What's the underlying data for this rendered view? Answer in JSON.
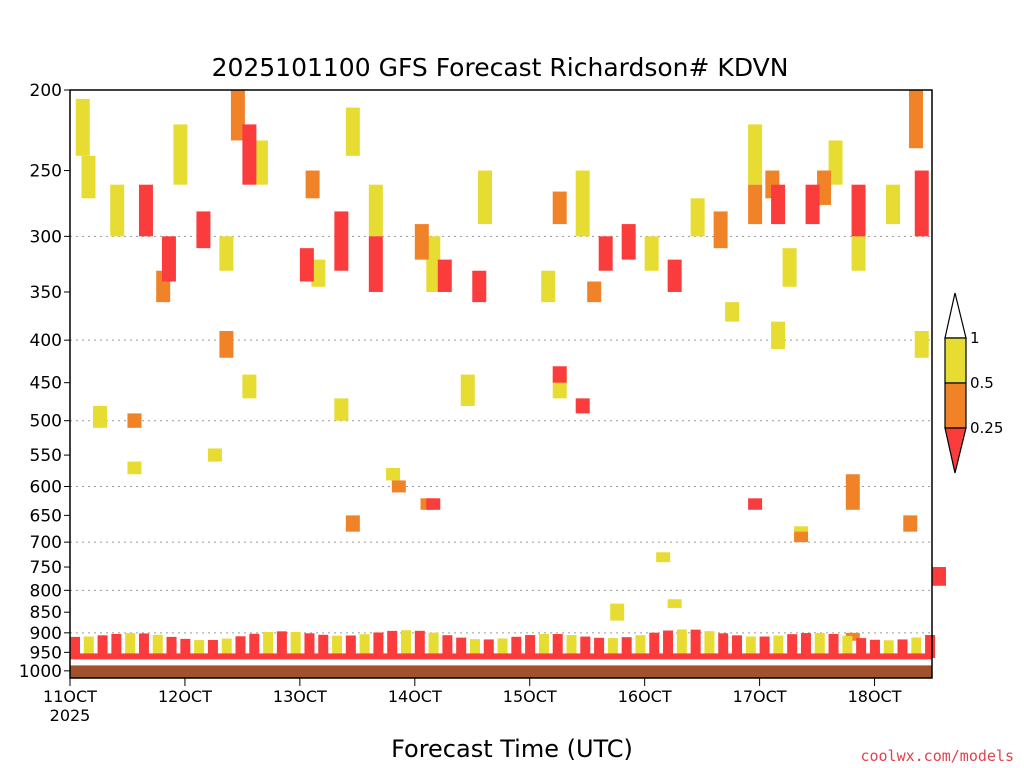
{
  "chart_data": {
    "type": "heatmap",
    "title": "2025101100 GFS Forecast Richardson# KDVN",
    "xlabel": "Forecast Time (UTC)",
    "ylabel": "",
    "credit": "coolwx.com/models",
    "x_ticks": [
      {
        "label": "11OCT",
        "sub": "2025",
        "day": 11
      },
      {
        "label": "12OCT",
        "day": 12
      },
      {
        "label": "13OCT",
        "day": 13
      },
      {
        "label": "14OCT",
        "day": 14
      },
      {
        "label": "15OCT",
        "day": 15
      },
      {
        "label": "16OCT",
        "day": 16
      },
      {
        "label": "17OCT",
        "day": 17
      },
      {
        "label": "18OCT",
        "day": 18
      }
    ],
    "xlim": [
      11,
      18.5
    ],
    "y_axis_scale": "log",
    "y_ticks": [
      200,
      250,
      300,
      350,
      400,
      450,
      500,
      550,
      600,
      650,
      700,
      750,
      800,
      850,
      900,
      950,
      1000
    ],
    "ylim": [
      200,
      1020
    ],
    "dotted_gridlines": [
      300,
      400,
      500,
      600,
      700,
      800,
      900
    ],
    "legend": {
      "bins": [
        {
          "label": "1",
          "color": "#ffffff"
        },
        {
          "label": "0.5",
          "color": "#e6dc32"
        },
        {
          "label": "0.25",
          "color": "#f08228"
        },
        {
          "label": "",
          "color": "#fa3c3c"
        }
      ]
    },
    "colors": {
      "yellow": "#e6dc32",
      "orange": "#f08228",
      "red": "#fa3c3c",
      "ground": "#a0522d"
    },
    "ground_pressure": 985,
    "series": [
      {
        "bin": "0.5-1",
        "cells": [
          [
            11.05,
            205,
            240
          ],
          [
            11.1,
            240,
            270
          ],
          [
            11.35,
            260,
            300
          ],
          [
            11.9,
            220,
            260
          ],
          [
            12.3,
            300,
            330
          ],
          [
            12.6,
            230,
            260
          ],
          [
            13.1,
            320,
            345
          ],
          [
            13.4,
            210,
            240
          ],
          [
            13.6,
            260,
            300
          ],
          [
            14.1,
            300,
            350
          ],
          [
            14.55,
            250,
            290
          ],
          [
            15.1,
            330,
            360
          ],
          [
            15.4,
            250,
            300
          ],
          [
            16.0,
            300,
            330
          ],
          [
            16.4,
            270,
            300
          ],
          [
            16.9,
            220,
            260
          ],
          [
            17.2,
            310,
            345
          ],
          [
            17.6,
            230,
            260
          ],
          [
            17.8,
            300,
            330
          ],
          [
            18.1,
            260,
            290
          ],
          [
            18.35,
            390,
            420
          ],
          [
            13.75,
            570,
            590
          ],
          [
            15.7,
            830,
            870
          ],
          [
            16.2,
            820,
            840
          ],
          [
            11.2,
            480,
            510
          ],
          [
            12.2,
            540,
            560
          ],
          [
            13.3,
            470,
            500
          ],
          [
            14.4,
            440,
            480
          ],
          [
            15.2,
            440,
            470
          ],
          [
            16.7,
            360,
            380
          ],
          [
            17.1,
            380,
            410
          ],
          [
            17.3,
            670,
            700
          ],
          [
            16.1,
            720,
            740
          ],
          [
            12.5,
            440,
            470
          ],
          [
            11.5,
            560,
            580
          ]
        ]
      },
      {
        "bin": "0.25-0.5",
        "cells": [
          [
            11.75,
            330,
            360
          ],
          [
            12.4,
            200,
            230
          ],
          [
            13.05,
            250,
            270
          ],
          [
            14.0,
            290,
            320
          ],
          [
            15.2,
            265,
            290
          ],
          [
            16.6,
            280,
            310
          ],
          [
            16.9,
            260,
            290
          ],
          [
            17.05,
            250,
            270
          ],
          [
            17.5,
            250,
            275
          ],
          [
            18.3,
            200,
            235
          ],
          [
            13.8,
            590,
            610
          ],
          [
            14.05,
            620,
            640
          ],
          [
            17.75,
            580,
            640
          ],
          [
            11.5,
            490,
            510
          ],
          [
            12.3,
            390,
            420
          ],
          [
            15.5,
            340,
            360
          ],
          [
            13.4,
            650,
            680
          ],
          [
            17.3,
            680,
            700
          ],
          [
            18.25,
            650,
            680
          ],
          [
            17.75,
            900,
            920
          ]
        ]
      },
      {
        "bin": "0-0.25",
        "cells": [
          [
            11.6,
            260,
            300
          ],
          [
            11.8,
            300,
            340
          ],
          [
            12.1,
            280,
            310
          ],
          [
            12.5,
            220,
            260
          ],
          [
            13.0,
            310,
            340
          ],
          [
            13.3,
            280,
            330
          ],
          [
            13.6,
            300,
            350
          ],
          [
            14.2,
            320,
            350
          ],
          [
            14.5,
            330,
            360
          ],
          [
            15.6,
            300,
            330
          ],
          [
            15.8,
            290,
            320
          ],
          [
            16.2,
            320,
            350
          ],
          [
            17.1,
            260,
            290
          ],
          [
            17.4,
            260,
            290
          ],
          [
            17.8,
            260,
            300
          ],
          [
            18.35,
            250,
            300
          ],
          [
            16.9,
            620,
            640
          ],
          [
            14.1,
            620,
            640
          ],
          [
            15.4,
            470,
            490
          ],
          [
            15.2,
            430,
            450
          ],
          [
            18.5,
            750,
            790
          ]
        ]
      }
    ]
  }
}
